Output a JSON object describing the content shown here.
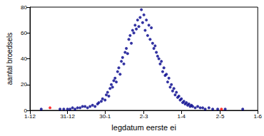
{
  "chart_data": {
    "type": "scatter",
    "x_label": "legdatum eerste ei",
    "y_label": "aantal broedsels",
    "xlim": [
      0,
      182
    ],
    "xticks": [
      {
        "value": 0,
        "label": "1-12"
      },
      {
        "value": 30,
        "label": "31-12"
      },
      {
        "value": 60,
        "label": "30-1"
      },
      {
        "value": 91,
        "label": "2-3"
      },
      {
        "value": 121,
        "label": "1-4"
      },
      {
        "value": 152,
        "label": "2-5"
      },
      {
        "value": 182,
        "label": "1-6"
      }
    ],
    "ylim": [
      0,
      80
    ],
    "yticks": [
      0,
      20,
      40,
      60,
      80
    ],
    "grid": false,
    "series": [
      {
        "color": "#00008b",
        "marker": "circle",
        "x": [
          9,
          24,
          27,
          30,
          32,
          34,
          36,
          38,
          40,
          42,
          44,
          46,
          48,
          50,
          52,
          54,
          55,
          57,
          58,
          60,
          61,
          62,
          63,
          64,
          65,
          66,
          67,
          68,
          69,
          70,
          71,
          72,
          73,
          74,
          75,
          76,
          77,
          78,
          79,
          80,
          81,
          82,
          83,
          84,
          85,
          86,
          87,
          88,
          89,
          90,
          91,
          92,
          93,
          94,
          95,
          96,
          97,
          98,
          99,
          100,
          101,
          102,
          103,
          104,
          105,
          106,
          107,
          108,
          109,
          110,
          111,
          112,
          113,
          114,
          115,
          116,
          117,
          118,
          119,
          120,
          121,
          122,
          123,
          124,
          125,
          126,
          127,
          128,
          129,
          130,
          132,
          134,
          136,
          138,
          140,
          143,
          146,
          150,
          156,
          170
        ],
        "values": [
          1,
          1,
          1,
          1,
          1,
          2,
          1,
          2,
          2,
          3,
          3,
          2,
          3,
          4,
          3,
          5,
          6,
          7,
          9,
          8,
          12,
          14,
          11,
          17,
          20,
          18,
          23,
          25,
          22,
          30,
          33,
          28,
          38,
          41,
          36,
          45,
          48,
          44,
          55,
          58,
          52,
          62,
          60,
          66,
          63,
          70,
          65,
          72,
          78,
          68,
          74,
          62,
          70,
          58,
          66,
          55,
          64,
          52,
          48,
          50,
          45,
          42,
          40,
          36,
          38,
          30,
          33,
          27,
          28,
          22,
          25,
          18,
          20,
          15,
          17,
          12,
          14,
          10,
          11,
          8,
          9,
          6,
          7,
          5,
          6,
          4,
          5,
          3,
          4,
          3,
          2,
          3,
          2,
          2,
          1,
          2,
          1,
          1,
          1,
          1
        ]
      },
      {
        "color": "#ff0000",
        "marker": "circle",
        "x": [
          16,
          153
        ],
        "values": [
          2,
          1
        ]
      }
    ]
  }
}
